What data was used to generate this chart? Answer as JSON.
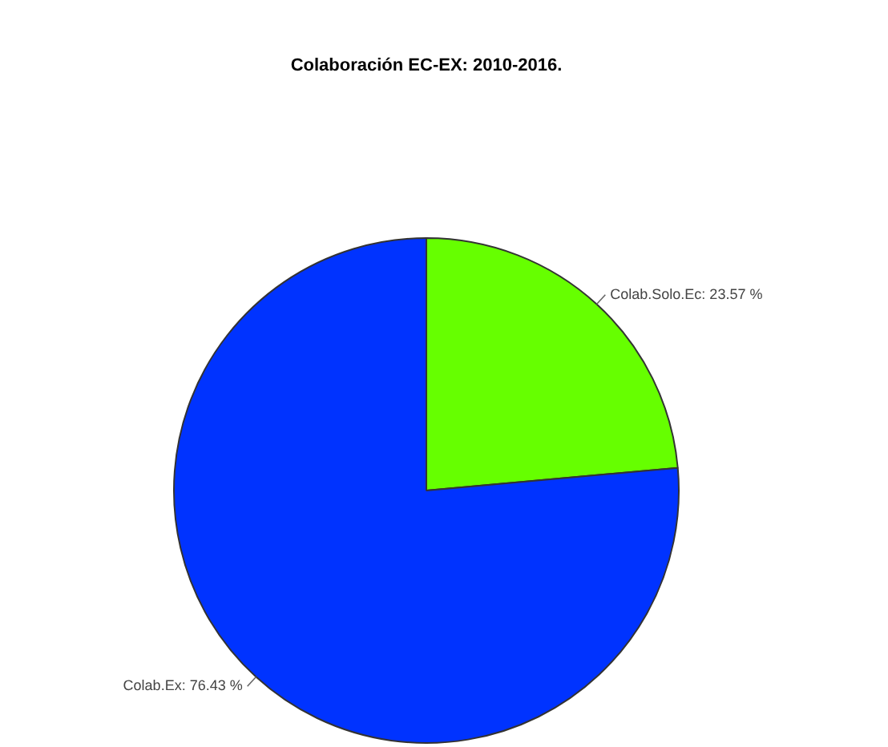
{
  "chart_data": {
    "type": "pie",
    "title": "Colaboración EC-EX: 2010-2016.",
    "categories": [
      "Colab.Solo.Ec",
      "Colab.Ex"
    ],
    "values": [
      23.57,
      76.43
    ],
    "colors": [
      "#66ff00",
      "#0033ff"
    ],
    "value_labels": [
      "23.57 %",
      "76.43 %"
    ],
    "legend": false
  }
}
